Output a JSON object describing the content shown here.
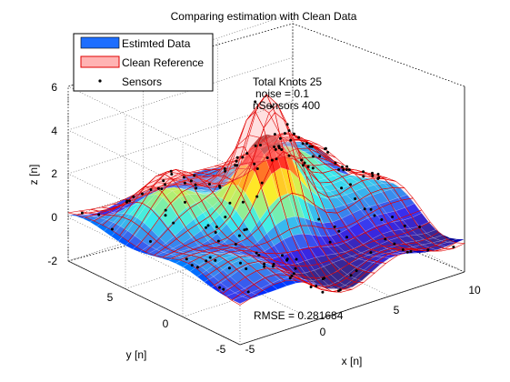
{
  "chart_data": {
    "type": "surface",
    "title": "Comparing estimation with Clean Data",
    "xlabel": "x [n]",
    "ylabel": "y [n]",
    "zlabel": "z [n]",
    "x_ticks": [
      "-5",
      "0",
      "5",
      "10"
    ],
    "y_ticks": [
      "-5",
      "0",
      "5"
    ],
    "z_ticks": [
      "-2",
      "0",
      "2",
      "4",
      "6"
    ],
    "xlim": [
      -5,
      10
    ],
    "ylim": [
      -5,
      10
    ],
    "zlim": [
      -2,
      6
    ],
    "grid": true,
    "legend_position": "top-left",
    "series": [
      {
        "name": "Estimted Data",
        "kind": "surface",
        "color": "#1e6eff",
        "colormap": "jet"
      },
      {
        "name": "Clean Reference",
        "kind": "mesh",
        "color": "#ffb3b3",
        "edge_color": "#e00000"
      },
      {
        "name": "Sensors",
        "kind": "points",
        "color": "#000000"
      }
    ],
    "annotations": [
      "Total Knots 25",
      "noise = 0.1",
      "nSensors 400",
      "RMSE = 0.281684"
    ],
    "peak": {
      "x": 2.5,
      "y": 2.5,
      "z": 5.8
    }
  }
}
